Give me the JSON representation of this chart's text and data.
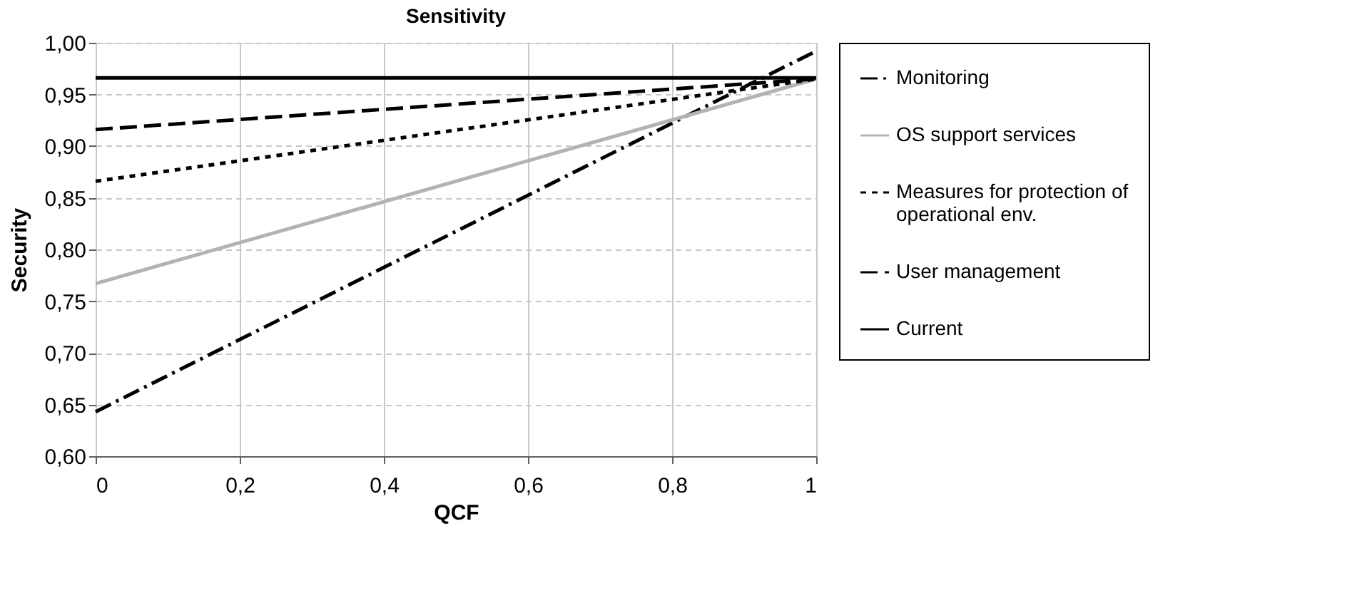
{
  "chart_data": {
    "type": "line",
    "title": "Sensitivity",
    "xlabel": "QCF",
    "ylabel": "Security",
    "xlim": [
      0,
      1
    ],
    "ylim": [
      0.6,
      1.0
    ],
    "xticks": [
      0,
      {
        "value": 0.2,
        "label": "0,2"
      },
      {
        "value": 0.4,
        "label": "0,4"
      },
      {
        "value": 0.6,
        "label": "0,6"
      },
      {
        "value": 0.8,
        "label": "0,8"
      },
      1
    ],
    "yticks": [
      {
        "value": 0.6,
        "label": "0,60"
      },
      {
        "value": 0.65,
        "label": "0,65"
      },
      {
        "value": 0.7,
        "label": "0,70"
      },
      {
        "value": 0.75,
        "label": "0,75"
      },
      {
        "value": 0.8,
        "label": "0,80"
      },
      {
        "value": 0.85,
        "label": "0,85"
      },
      {
        "value": 0.9,
        "label": "0,90"
      },
      {
        "value": 0.95,
        "label": "0,95"
      },
      {
        "value": 1.0,
        "label": "1,00"
      }
    ],
    "x": [
      0,
      1
    ],
    "series": [
      {
        "name": "Monitoring",
        "color": "#000000",
        "line_style": "dashdot",
        "values": [
          0.643,
          0.992
        ]
      },
      {
        "name": "OS support services",
        "color": "#b3b3b3",
        "line_style": "solid",
        "values": [
          0.767,
          0.965
        ]
      },
      {
        "name": "Measures for protection of operational env.",
        "color": "#000000",
        "line_style": "dotted",
        "values": [
          0.866,
          0.965
        ]
      },
      {
        "name": "User management",
        "color": "#000000",
        "line_style": "dashed",
        "values": [
          0.916,
          0.965
        ]
      },
      {
        "name": "Current",
        "color": "#000000",
        "line_style": "solid",
        "values": [
          0.966,
          0.966
        ]
      }
    ],
    "grid": true,
    "legend": "right",
    "marker": "none"
  }
}
